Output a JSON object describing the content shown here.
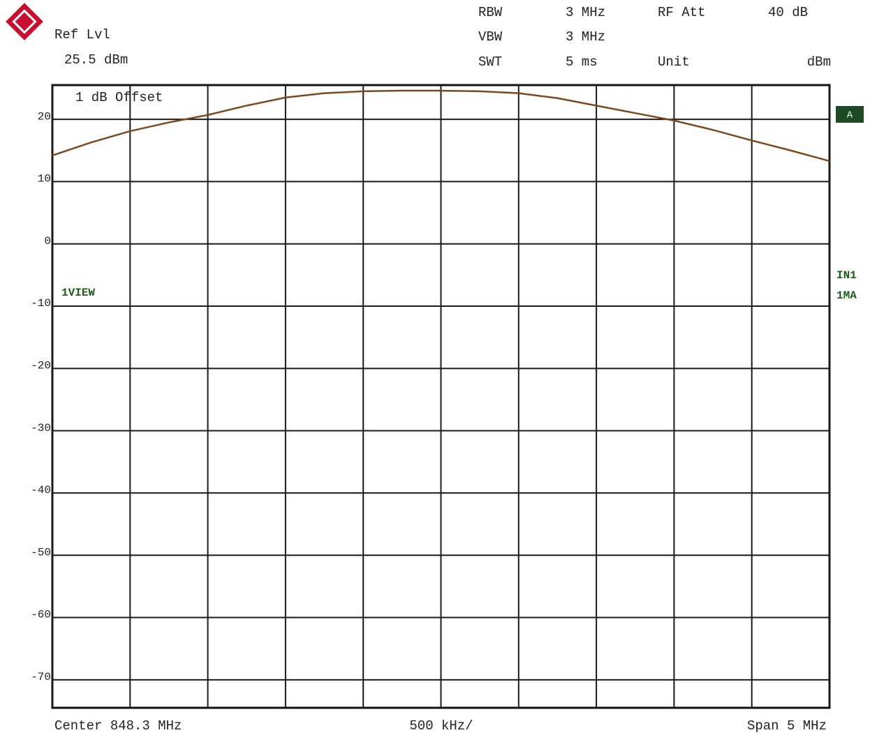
{
  "chart_data": {
    "type": "line",
    "ref_level_label": "Ref Lvl",
    "ref_level": "25.5 dBm",
    "settings": [
      {
        "label": "RBW",
        "value": "3 MHz"
      },
      {
        "label": "VBW",
        "value": "3 MHz"
      },
      {
        "label": "SWT",
        "value": "5 ms"
      },
      {
        "label": "RF Att",
        "value": "40 dB"
      },
      {
        "label": "Unit",
        "value": "dBm"
      }
    ],
    "offset_note": "1 dB Offset",
    "trace_marker": "A",
    "view_label": "1VIEW",
    "side_labels": [
      "IN1",
      "1MA"
    ],
    "center_label": "Center 848.3 MHz",
    "div_label": "500 kHz/",
    "span_label": "Span 5 MHz",
    "x": [
      845.8,
      846.05,
      846.3,
      846.55,
      846.8,
      847.05,
      847.3,
      847.55,
      847.8,
      848.05,
      848.3,
      848.55,
      848.8,
      849.05,
      849.3,
      849.55,
      849.8,
      850.05,
      850.3,
      850.55,
      850.8
    ],
    "series": [
      {
        "color": "#7a4a1e",
        "values": [
          14.2,
          16.3,
          18.1,
          19.5,
          20.7,
          22.2,
          23.5,
          24.2,
          24.5,
          24.6,
          24.6,
          24.5,
          24.2,
          23.4,
          22.2,
          21.0,
          19.8,
          18.3,
          16.6,
          15.0,
          13.3
        ]
      }
    ],
    "xlim": [
      845.8,
      850.8
    ],
    "xticks": [
      845.8,
      846.3,
      846.8,
      847.3,
      847.8,
      848.3,
      848.8,
      849.3,
      849.8,
      850.3,
      850.8
    ],
    "ylim": [
      -74.5,
      25.5
    ],
    "yticks": [
      20,
      10,
      0,
      -10,
      -20,
      -30,
      -40,
      -50,
      -60,
      -70
    ],
    "grid": true
  }
}
